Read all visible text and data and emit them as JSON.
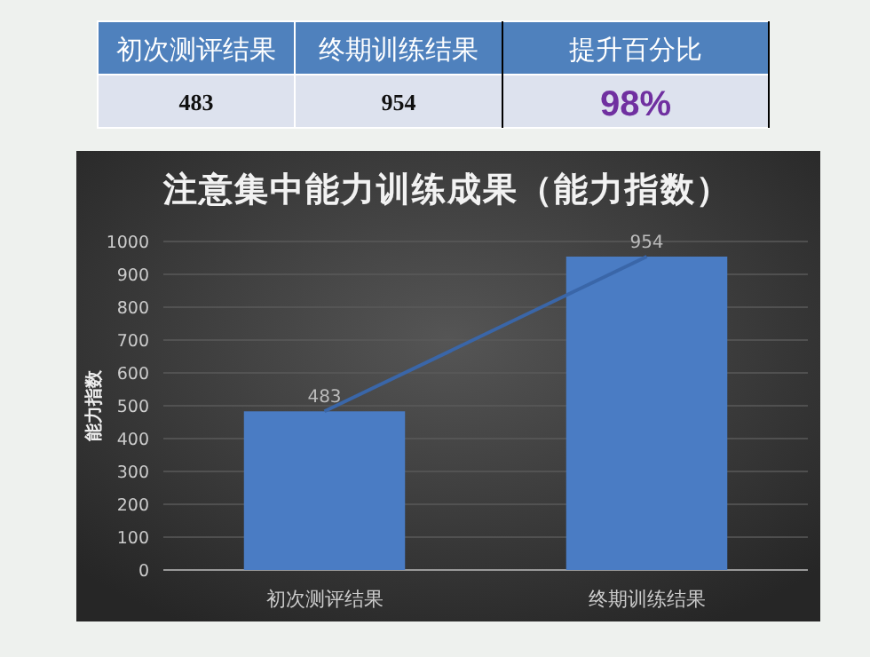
{
  "chart_data": [
    {
      "type": "other",
      "annotations": [
        "初次测评结果",
        "终期训练结果",
        "提升百分比",
        "483",
        "954",
        "98%"
      ]
    },
    {
      "type": "bar",
      "title": "注意集中能力训练成果（能力指数）",
      "ylabel": "能力指数",
      "categories": [
        "初次测评结果",
        "终期训练结果"
      ],
      "series": [
        {
          "type": "bar",
          "color": "#4a7cc4",
          "values": [
            483,
            954
          ],
          "value_labels": [
            "483",
            "954"
          ]
        },
        {
          "type": "line",
          "color": "#3a66a8",
          "values": [
            483,
            954
          ]
        }
      ],
      "ylim": [
        0,
        1000
      ],
      "yticks": [
        0,
        100,
        200,
        300,
        400,
        500,
        600,
        700,
        800,
        900,
        1000
      ],
      "grid": "y"
    }
  ]
}
